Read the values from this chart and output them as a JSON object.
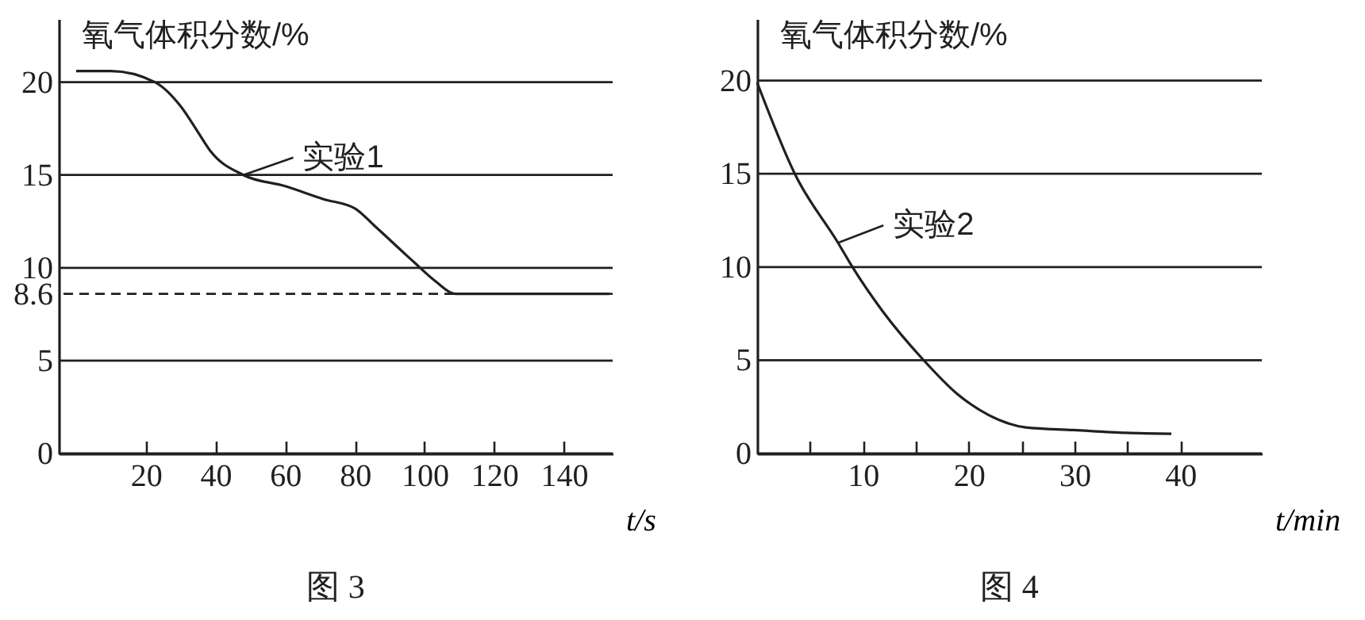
{
  "chart_data": [
    {
      "type": "line",
      "title": "图 3",
      "xlabel": "t/s",
      "ylabel": "氧气体积分数/%",
      "xlim": [
        -5,
        154
      ],
      "ylim": [
        0,
        23.4
      ],
      "xticks": [
        20,
        40,
        60,
        80,
        100,
        120,
        140
      ],
      "yticks": [
        0,
        5,
        8.6,
        10,
        15,
        20
      ],
      "grid": "y",
      "line_style": "solid",
      "ref_lines": [
        {
          "axis": "y",
          "value": 8.6,
          "line_style": "dashed"
        }
      ],
      "x": [
        0,
        10,
        22.6,
        30,
        35,
        38.5,
        48,
        60,
        71,
        80,
        86,
        97,
        103,
        109,
        153
      ],
      "series": [
        {
          "name": "实验1",
          "color": "#231f20",
          "values": [
            20.6,
            20.6,
            20,
            18.7,
            17.3,
            16.3,
            15.0,
            14.4,
            13.7,
            13.2,
            12.2,
            10.3,
            9.3,
            8.6,
            8.6
          ]
        }
      ]
    },
    {
      "type": "line",
      "title": "图 4",
      "xlabel": "t/min",
      "ylabel": "氧气体积分数/%",
      "xlim": [
        0,
        47.7
      ],
      "ylim": [
        0,
        23.3
      ],
      "xticks": [
        {
          "value": 5,
          "label": null
        },
        10,
        {
          "value": 15,
          "label": null
        },
        20,
        {
          "value": 25,
          "label": null
        },
        30,
        {
          "value": 35,
          "label": null
        },
        40
      ],
      "yticks": [
        0,
        5,
        10,
        15,
        20
      ],
      "grid": "y",
      "line_style": "solid",
      "x": [
        0,
        3.65,
        7.65,
        8.9,
        11.9,
        15.65,
        18.9,
        21.9,
        25.4,
        29.9,
        34.9,
        39.15
      ],
      "series": [
        {
          "name": "实验2",
          "color": "#231f20",
          "values": [
            19.9,
            14.9,
            11.3,
            10.1,
            7.6,
            5.06,
            3.2,
            2.06,
            1.4,
            1.26,
            1.11,
            1.06
          ]
        }
      ]
    }
  ]
}
